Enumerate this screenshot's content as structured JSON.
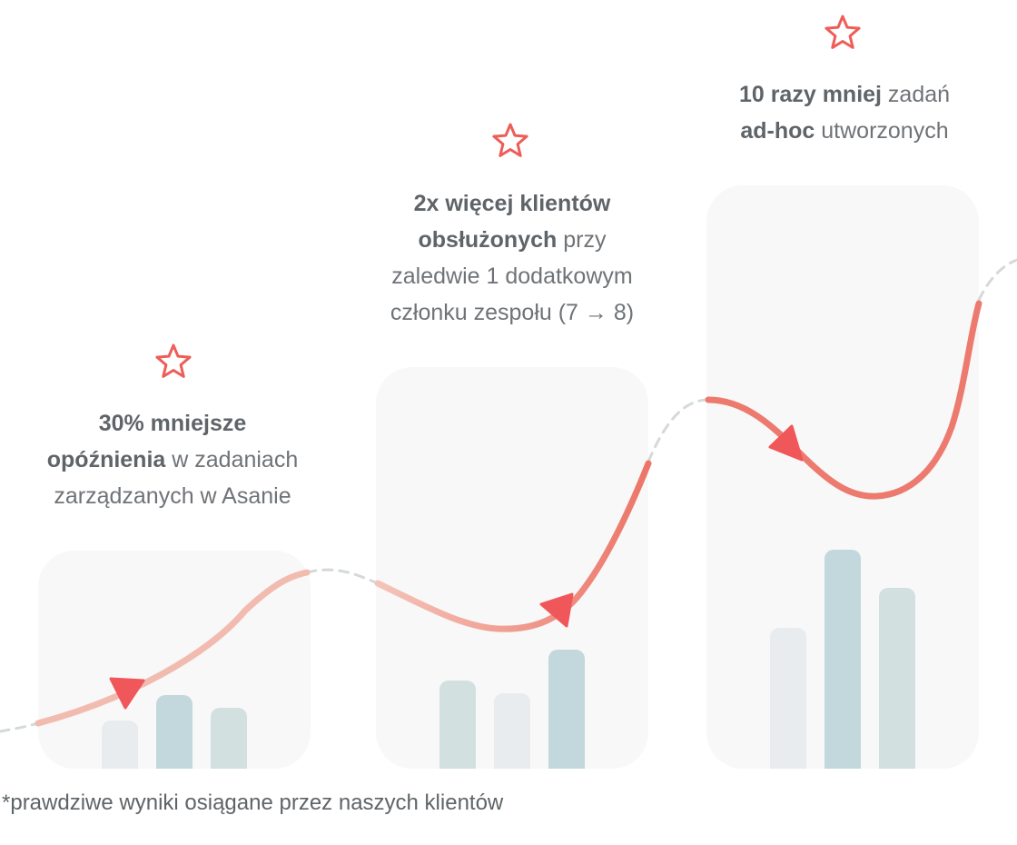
{
  "colors": {
    "panel": "#f8f8f8",
    "curve_light": "#f2bbb0",
    "curve_dark": "#ed7a6e",
    "arrow": "#f0575a",
    "star": "#ee5d57",
    "dash": "#d4d9d9",
    "bar_pale": "#e8ecee",
    "bar_mid": "#d2e0df",
    "bar_dark": "#c2d8dc"
  },
  "stats": [
    {
      "bold_1": "30% mniejsze",
      "bold_2": "opóźnienia",
      "rest_2": " w zadaniach",
      "line_3": "zarządzanych w Asanie"
    },
    {
      "bold_1": "2x więcej klientów",
      "bold_2": "obsłużonych",
      "rest_2": " przy",
      "line_3": "zaledwie 1 dodatkowym",
      "line_4": "członku zespołu (7 → 8)"
    },
    {
      "bold_1": "10 razy mniej",
      "rest_1": " zadań",
      "bold_2": "ad-hoc",
      "rest_2": " utworzonych"
    }
  ],
  "bar_groups": [
    {
      "values": [
        53,
        81,
        67
      ]
    },
    {
      "values": [
        97,
        83,
        131
      ]
    },
    {
      "values": [
        155,
        241,
        199
      ]
    }
  ],
  "footnote": "*prawdziwe wyniki osiągane przez naszych klientów"
}
